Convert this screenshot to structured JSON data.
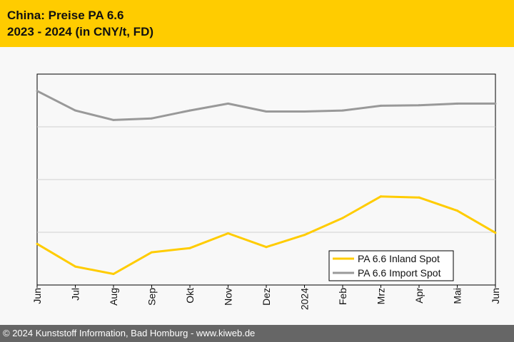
{
  "header": {
    "title_line1": "China: Preise PA 6.6",
    "title_line2": "2023 - 2024 (in CNY/t, FD)"
  },
  "footer": {
    "text": "© 2024 Kunststoff Information, Bad Homburg - www.kiweb.de"
  },
  "colors": {
    "header_bg": "#ffcc00",
    "inland": "#ffcc00",
    "import": "#999999",
    "footer_bg": "#666666"
  },
  "chart_data": {
    "type": "line",
    "title": "China: Preise PA 6.6 2023 - 2024 (in CNY/t, FD)",
    "xlabel": "",
    "ylabel": "",
    "categories": [
      "Jun",
      "Jul",
      "Aug",
      "Sep",
      "Okt",
      "Nov",
      "Dez",
      "2024",
      "Feb",
      "Mrz",
      "Apr",
      "Mai",
      "Jun"
    ],
    "ylim": [
      0,
      4
    ],
    "gridlines": [
      1,
      2,
      3
    ],
    "legend_position": "bottom-right",
    "series": [
      {
        "name": "PA 6.6 Inland Spot",
        "color": "#ffcc00",
        "values": [
          0.78,
          0.35,
          0.21,
          0.62,
          0.7,
          0.98,
          0.72,
          0.95,
          1.27,
          1.68,
          1.66,
          1.41,
          0.99
        ]
      },
      {
        "name": "PA 6.6 Import Spot",
        "color": "#999999",
        "values": [
          3.68,
          3.31,
          3.13,
          3.16,
          3.31,
          3.44,
          3.29,
          3.29,
          3.31,
          3.4,
          3.41,
          3.44,
          3.44
        ]
      }
    ]
  }
}
